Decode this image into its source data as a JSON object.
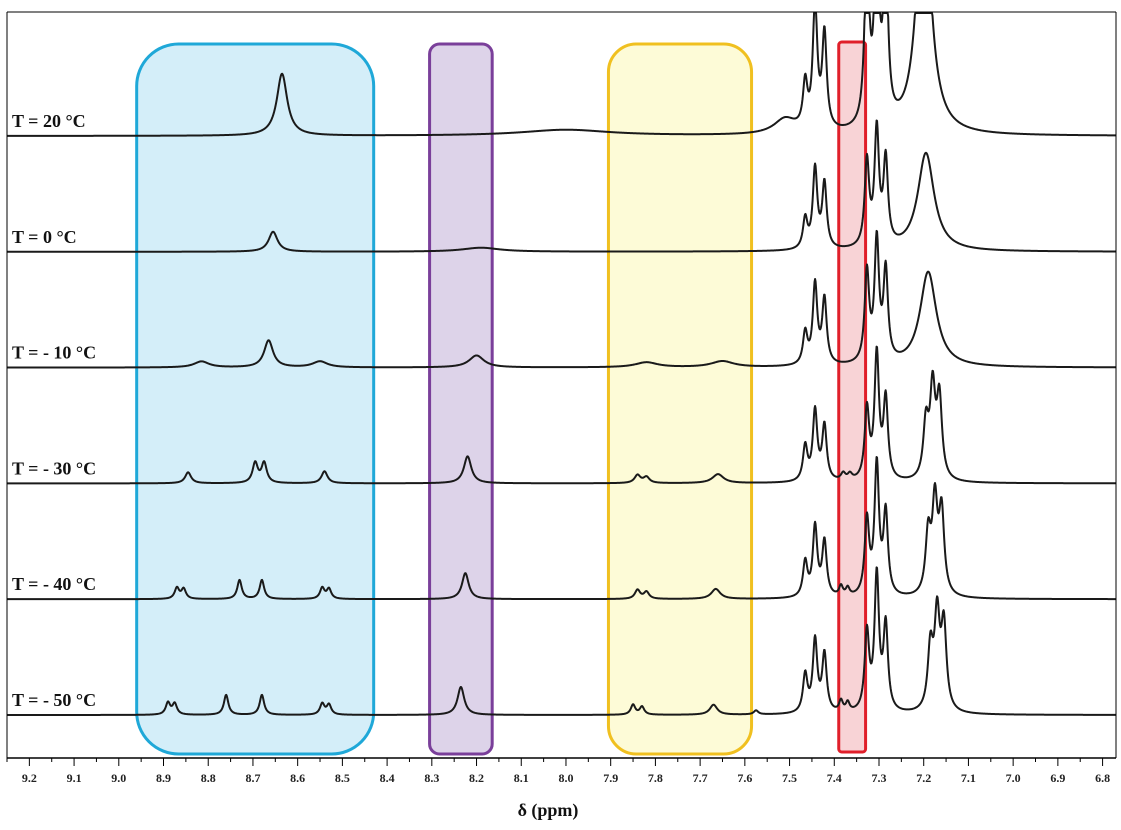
{
  "chart_data": {
    "type": "line",
    "xlabel": "δ (ppm)",
    "ylabel": "",
    "xlim": [
      9.25,
      6.77
    ],
    "x_reversed": true,
    "xticks": [
      9.2,
      9.1,
      9.0,
      8.9,
      8.8,
      8.7,
      8.6,
      8.5,
      8.4,
      8.3,
      8.2,
      8.1,
      8.0,
      7.9,
      7.8,
      7.7,
      7.6,
      7.5,
      7.4,
      7.3,
      7.2,
      7.1,
      7.0,
      6.9,
      6.8
    ],
    "xtick_labels": [
      "9.2",
      "9.1",
      "9.0",
      "8.9",
      "8.8",
      "8.7",
      "8.6",
      "8.5",
      "8.4",
      "8.3",
      "8.2",
      "8.1",
      "8.0",
      "7.9",
      "7.8",
      "7.7",
      "7.6",
      "7.5",
      "7.4",
      "7.3",
      "7.2",
      "7.1",
      "7.0",
      "6.9",
      "6.8"
    ],
    "highlight_regions": [
      {
        "x_from": 8.96,
        "x_to": 8.43,
        "color": "#d4eef9",
        "border": "#1fa8d8"
      },
      {
        "x_from": 8.305,
        "x_to": 8.165,
        "color": "#ddd3e9",
        "border": "#7a3f9a"
      },
      {
        "x_from": 7.905,
        "x_to": 7.585,
        "color": "#fdfbd7",
        "border": "#f0c020"
      },
      {
        "x_from": 7.39,
        "x_to": 7.33,
        "color": "#f8d3d6",
        "border": "#e01f2a"
      }
    ],
    "series": [
      {
        "name": "T = 20 °C",
        "baseline_offset": 5,
        "peaks": [
          {
            "x": 8.635,
            "h": 62,
            "w": 0.014
          },
          {
            "x": 8.0,
            "h": 6,
            "w": 0.12
          },
          {
            "x": 7.51,
            "h": 15,
            "w": 0.03
          },
          {
            "x": 7.465,
            "h": 45,
            "w": 0.006
          },
          {
            "x": 7.443,
            "h": 125,
            "w": 0.006
          },
          {
            "x": 7.422,
            "h": 95,
            "w": 0.006
          },
          {
            "x": 7.327,
            "h": 180,
            "w": 0.006
          },
          {
            "x": 7.305,
            "h": 200,
            "w": 0.006
          },
          {
            "x": 7.285,
            "h": 170,
            "w": 0.006
          },
          {
            "x": 7.2,
            "h": 260,
            "w": 0.018
          }
        ]
      },
      {
        "name": "T = 0 °C",
        "baseline_offset": 5,
        "peaks": [
          {
            "x": 8.655,
            "h": 20,
            "w": 0.012
          },
          {
            "x": 8.19,
            "h": 4,
            "w": 0.05
          },
          {
            "x": 7.465,
            "h": 30,
            "w": 0.006
          },
          {
            "x": 7.443,
            "h": 80,
            "w": 0.006
          },
          {
            "x": 7.422,
            "h": 65,
            "w": 0.006
          },
          {
            "x": 7.327,
            "h": 85,
            "w": 0.006
          },
          {
            "x": 7.305,
            "h": 115,
            "w": 0.006
          },
          {
            "x": 7.285,
            "h": 85,
            "w": 0.006
          },
          {
            "x": 7.195,
            "h": 98,
            "w": 0.022
          }
        ]
      },
      {
        "name": "T = - 10 °C",
        "baseline_offset": 5,
        "peaks": [
          {
            "x": 8.815,
            "h": 6,
            "w": 0.02
          },
          {
            "x": 8.665,
            "h": 27,
            "w": 0.012
          },
          {
            "x": 8.55,
            "h": 6,
            "w": 0.02
          },
          {
            "x": 8.2,
            "h": 12,
            "w": 0.02
          },
          {
            "x": 7.82,
            "h": 5,
            "w": 0.03
          },
          {
            "x": 7.65,
            "h": 6,
            "w": 0.03
          },
          {
            "x": 7.465,
            "h": 32,
            "w": 0.006
          },
          {
            "x": 7.443,
            "h": 80,
            "w": 0.006
          },
          {
            "x": 7.422,
            "h": 65,
            "w": 0.006
          },
          {
            "x": 7.327,
            "h": 90,
            "w": 0.006
          },
          {
            "x": 7.305,
            "h": 120,
            "w": 0.006
          },
          {
            "x": 7.285,
            "h": 90,
            "w": 0.006
          },
          {
            "x": 7.19,
            "h": 95,
            "w": 0.022
          }
        ]
      },
      {
        "name": "T = - 30 °C",
        "baseline_offset": 5,
        "peaks": [
          {
            "x": 8.845,
            "h": 11,
            "w": 0.008
          },
          {
            "x": 8.695,
            "h": 20,
            "w": 0.007
          },
          {
            "x": 8.675,
            "h": 20,
            "w": 0.007
          },
          {
            "x": 8.54,
            "h": 12,
            "w": 0.008
          },
          {
            "x": 8.22,
            "h": 27,
            "w": 0.01
          },
          {
            "x": 7.84,
            "h": 8,
            "w": 0.008
          },
          {
            "x": 7.82,
            "h": 6,
            "w": 0.008
          },
          {
            "x": 7.66,
            "h": 9,
            "w": 0.015
          },
          {
            "x": 7.465,
            "h": 35,
            "w": 0.006
          },
          {
            "x": 7.443,
            "h": 70,
            "w": 0.006
          },
          {
            "x": 7.422,
            "h": 55,
            "w": 0.006
          },
          {
            "x": 7.38,
            "h": 7,
            "w": 0.006
          },
          {
            "x": 7.365,
            "h": 6,
            "w": 0.006
          },
          {
            "x": 7.327,
            "h": 70,
            "w": 0.006
          },
          {
            "x": 7.305,
            "h": 125,
            "w": 0.006
          },
          {
            "x": 7.285,
            "h": 80,
            "w": 0.006
          },
          {
            "x": 7.195,
            "h": 55,
            "w": 0.007
          },
          {
            "x": 7.18,
            "h": 88,
            "w": 0.007
          },
          {
            "x": 7.165,
            "h": 80,
            "w": 0.007
          }
        ]
      },
      {
        "name": "T = - 40 °C",
        "baseline_offset": 5,
        "peaks": [
          {
            "x": 8.87,
            "h": 11,
            "w": 0.006
          },
          {
            "x": 8.855,
            "h": 10,
            "w": 0.006
          },
          {
            "x": 8.73,
            "h": 19,
            "w": 0.006
          },
          {
            "x": 8.68,
            "h": 19,
            "w": 0.006
          },
          {
            "x": 8.545,
            "h": 11,
            "w": 0.006
          },
          {
            "x": 8.53,
            "h": 10,
            "w": 0.006
          },
          {
            "x": 8.225,
            "h": 26,
            "w": 0.009
          },
          {
            "x": 7.84,
            "h": 9,
            "w": 0.007
          },
          {
            "x": 7.82,
            "h": 7,
            "w": 0.007
          },
          {
            "x": 7.665,
            "h": 10,
            "w": 0.012
          },
          {
            "x": 7.465,
            "h": 35,
            "w": 0.006
          },
          {
            "x": 7.443,
            "h": 70,
            "w": 0.006
          },
          {
            "x": 7.422,
            "h": 55,
            "w": 0.006
          },
          {
            "x": 7.385,
            "h": 10,
            "w": 0.005
          },
          {
            "x": 7.37,
            "h": 8,
            "w": 0.005
          },
          {
            "x": 7.327,
            "h": 75,
            "w": 0.006
          },
          {
            "x": 7.305,
            "h": 130,
            "w": 0.006
          },
          {
            "x": 7.285,
            "h": 82,
            "w": 0.006
          },
          {
            "x": 7.19,
            "h": 60,
            "w": 0.007
          },
          {
            "x": 7.175,
            "h": 90,
            "w": 0.007
          },
          {
            "x": 7.16,
            "h": 82,
            "w": 0.007
          }
        ]
      },
      {
        "name": "T = - 50 °C",
        "baseline_offset": 5,
        "peaks": [
          {
            "x": 8.89,
            "h": 12,
            "w": 0.006
          },
          {
            "x": 8.875,
            "h": 11,
            "w": 0.006
          },
          {
            "x": 8.76,
            "h": 20,
            "w": 0.006
          },
          {
            "x": 8.68,
            "h": 20,
            "w": 0.006
          },
          {
            "x": 8.545,
            "h": 11,
            "w": 0.006
          },
          {
            "x": 8.53,
            "h": 10,
            "w": 0.006
          },
          {
            "x": 8.235,
            "h": 28,
            "w": 0.009
          },
          {
            "x": 7.85,
            "h": 10,
            "w": 0.006
          },
          {
            "x": 7.83,
            "h": 8,
            "w": 0.006
          },
          {
            "x": 7.67,
            "h": 10,
            "w": 0.01
          },
          {
            "x": 7.575,
            "h": 4,
            "w": 0.006
          },
          {
            "x": 7.465,
            "h": 38,
            "w": 0.006
          },
          {
            "x": 7.443,
            "h": 72,
            "w": 0.006
          },
          {
            "x": 7.422,
            "h": 58,
            "w": 0.006
          },
          {
            "x": 7.385,
            "h": 11,
            "w": 0.005
          },
          {
            "x": 7.37,
            "h": 9,
            "w": 0.005
          },
          {
            "x": 7.327,
            "h": 78,
            "w": 0.006
          },
          {
            "x": 7.305,
            "h": 135,
            "w": 0.006
          },
          {
            "x": 7.285,
            "h": 85,
            "w": 0.006
          },
          {
            "x": 7.185,
            "h": 62,
            "w": 0.007
          },
          {
            "x": 7.17,
            "h": 92,
            "w": 0.007
          },
          {
            "x": 7.155,
            "h": 84,
            "w": 0.007
          }
        ]
      }
    ]
  },
  "style": {
    "line_color": "#1a1a1a",
    "axis_color": "#000000"
  }
}
